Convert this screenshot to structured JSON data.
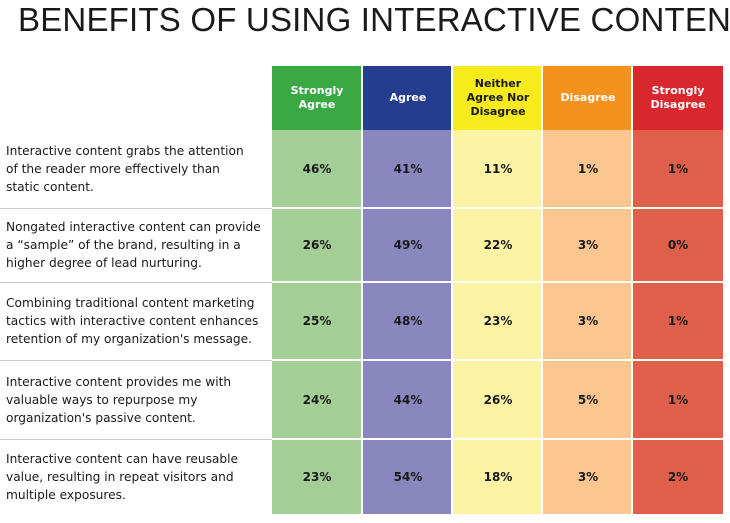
{
  "title": "BENEFITS OF USING INTERACTIVE CONTENT",
  "chart_data": {
    "type": "table",
    "title": "BENEFITS OF USING INTERACTIVE CONTENT",
    "columns": [
      {
        "label": "Strongly\nAgree",
        "header_color": "#3aa944",
        "cell_color": "#a3ce96"
      },
      {
        "label": "Agree",
        "header_color": "#253d8f",
        "cell_color": "#8a86be"
      },
      {
        "label": "Neither\nAgree Nor\nDisagree",
        "header_color": "#f7eb1d",
        "cell_color": "#fdf3a5",
        "header_text_color": "#1a1a1a"
      },
      {
        "label": "Disagree",
        "header_color": "#f5921d",
        "cell_color": "#fbc68f"
      },
      {
        "label": "Strongly\nDisagree",
        "header_color": "#d9272e",
        "cell_color": "#df604a"
      }
    ],
    "rows": [
      {
        "statement": "Interactive content grabs the attention\nof the reader more effectively than\nstatic content.",
        "values": [
          "46%",
          "41%",
          "11%",
          "1%",
          "1%"
        ]
      },
      {
        "statement": "Nongated interactive content can provide\na “sample” of the brand, resulting in a\nhigher degree of lead nurturing.",
        "values": [
          "26%",
          "49%",
          "22%",
          "3%",
          "0%"
        ]
      },
      {
        "statement": "Combining traditional content marketing\ntactics with interactive content enhances\nretention of my organization's message.",
        "values": [
          "25%",
          "48%",
          "23%",
          "3%",
          "1%"
        ]
      },
      {
        "statement": "Interactive content provides me with\nvaluable ways to repurpose my\norganization's passive content.",
        "values": [
          "24%",
          "44%",
          "26%",
          "5%",
          "1%"
        ]
      },
      {
        "statement": "Interactive content can have reusable\nvalue, resulting in repeat visitors and\nmultiple exposures.",
        "values": [
          "23%",
          "54%",
          "18%",
          "3%",
          "2%"
        ]
      }
    ]
  }
}
